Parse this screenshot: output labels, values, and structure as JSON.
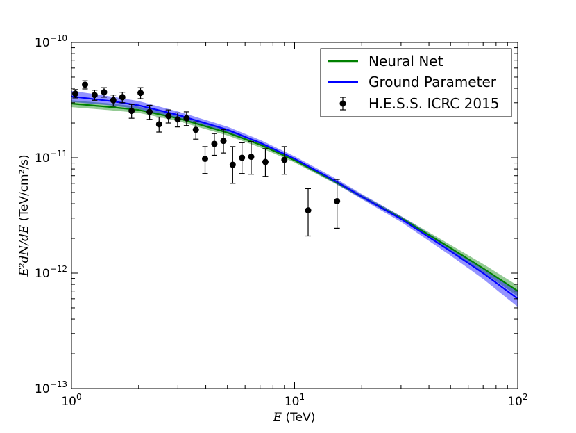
{
  "chart_data": {
    "type": "line",
    "x_scale": "log",
    "y_scale": "log",
    "xlim": [
      1,
      100
    ],
    "ylim": [
      1e-13,
      1e-10
    ],
    "x_ticks": [
      {
        "value": 1,
        "base": "10",
        "exp": "0"
      },
      {
        "value": 10,
        "base": "10",
        "exp": "1"
      },
      {
        "value": 100,
        "base": "10",
        "exp": "2"
      }
    ],
    "y_ticks": [
      {
        "value": 1e-13,
        "base": "10",
        "exp": "−13"
      },
      {
        "value": 1e-12,
        "base": "10",
        "exp": "−12"
      },
      {
        "value": 1e-11,
        "base": "10",
        "exp": "−11"
      },
      {
        "value": 1e-10,
        "base": "10",
        "exp": "−10"
      }
    ],
    "xlabel": {
      "var": "E",
      "unit": " (TeV)"
    },
    "ylabel": {
      "expr": "E²dN/dE",
      "unit": " (TeV/cm²/s)"
    },
    "legend": {
      "placement": "top-right",
      "entries": [
        {
          "label": "Neural Net",
          "color": "#008000",
          "kind": "line"
        },
        {
          "label": "Ground Parameter",
          "color": "#0000ff",
          "kind": "line"
        },
        {
          "label": "H.E.S.S. ICRC 2015",
          "color": "#000000",
          "kind": "errorbar"
        }
      ]
    },
    "series": [
      {
        "name": "Neural Net",
        "color": "#008000",
        "x": [
          1,
          1.5,
          2,
          3,
          5,
          7,
          10,
          15,
          20,
          30,
          50,
          70,
          100
        ],
        "y": [
          2.95e-11,
          2.75e-11,
          2.6e-11,
          2.2e-11,
          1.65e-11,
          1.3e-11,
          9.5e-12,
          6.3e-12,
          4.6e-12,
          3e-12,
          1.65e-12,
          1.1e-12,
          7e-13
        ],
        "y_lower": [
          2.75e-11,
          2.58e-11,
          2.45e-11,
          2.08e-11,
          1.56e-11,
          1.23e-11,
          9.1e-12,
          6.05e-12,
          4.45e-12,
          2.9e-12,
          1.55e-12,
          1.02e-12,
          6.3e-13
        ],
        "y_upper": [
          3.15e-11,
          2.95e-11,
          2.78e-11,
          2.34e-11,
          1.75e-11,
          1.38e-11,
          9.9e-12,
          6.55e-12,
          4.78e-12,
          3.12e-12,
          1.76e-12,
          1.2e-12,
          7.8e-13
        ]
      },
      {
        "name": "Ground Parameter",
        "color": "#0000ff",
        "x": [
          1,
          1.5,
          2,
          3,
          5,
          7,
          10,
          15,
          20,
          30,
          50,
          70,
          100
        ],
        "y": [
          3.4e-11,
          3.1e-11,
          2.85e-11,
          2.35e-11,
          1.75e-11,
          1.35e-11,
          9.8e-12,
          6.4e-12,
          4.6e-12,
          2.95e-12,
          1.55e-12,
          1e-12,
          6e-13
        ],
        "y_lower": [
          3.05e-11,
          2.85e-11,
          2.65e-11,
          2.2e-11,
          1.65e-11,
          1.28e-11,
          9.35e-12,
          6.1e-12,
          4.38e-12,
          2.78e-12,
          1.42e-12,
          8.9e-13,
          5.1e-13
        ],
        "y_upper": [
          3.8e-11,
          3.4e-11,
          3.1e-11,
          2.52e-11,
          1.86e-11,
          1.43e-11,
          1.03e-11,
          6.75e-12,
          4.85e-12,
          3.12e-12,
          1.68e-12,
          1.1e-12,
          6.9e-13
        ]
      }
    ],
    "points": {
      "name": "H.E.S.S. ICRC 2015",
      "color": "#000000",
      "x": [
        1.04,
        1.15,
        1.27,
        1.4,
        1.54,
        1.69,
        1.86,
        2.04,
        2.24,
        2.47,
        2.72,
        2.99,
        3.28,
        3.61,
        3.97,
        4.37,
        4.8,
        5.28,
        5.81,
        6.39,
        7.4,
        9.0,
        11.5,
        15.5
      ],
      "y": [
        3.6e-11,
        4.3e-11,
        3.5e-11,
        3.7e-11,
        3.15e-11,
        3.35e-11,
        2.55e-11,
        3.65e-11,
        2.5e-11,
        1.95e-11,
        2.3e-11,
        2.15e-11,
        2.2e-11,
        1.75e-11,
        9.8e-12,
        1.32e-11,
        1.4e-11,
        8.7e-12,
        1e-11,
        1.02e-11,
        9.2e-12,
        9.6e-12,
        3.5e-12,
        4.2e-12
      ],
      "y_lower": [
        3.3e-11,
        3.95e-11,
        3.15e-11,
        3.35e-11,
        2.8e-11,
        3e-11,
        2.2e-11,
        3.25e-11,
        2.15e-11,
        1.67e-11,
        2e-11,
        1.85e-11,
        1.9e-11,
        1.45e-11,
        7.3e-12,
        1.05e-11,
        1.1e-11,
        6e-12,
        7.3e-12,
        7.2e-12,
        6.9e-12,
        7.2e-12,
        2.1e-12,
        2.45e-12
      ],
      "y_upper": [
        3.9e-11,
        4.65e-11,
        3.85e-11,
        4.05e-11,
        3.5e-11,
        3.7e-11,
        2.9e-11,
        4.05e-11,
        2.85e-11,
        2.25e-11,
        2.6e-11,
        2.45e-11,
        2.5e-11,
        2.05e-11,
        1.25e-11,
        1.62e-11,
        1.75e-11,
        1.25e-11,
        1.35e-11,
        1.38e-11,
        1.2e-11,
        1.25e-11,
        5.4e-12,
        6.5e-12
      ]
    }
  }
}
